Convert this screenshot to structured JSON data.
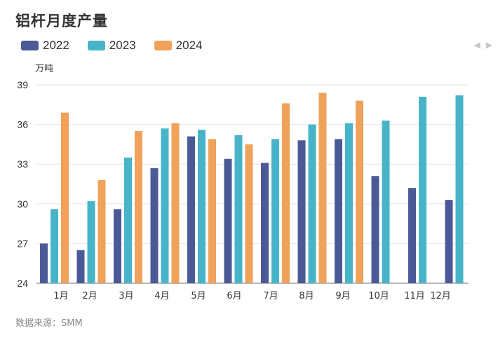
{
  "chart_data": {
    "type": "bar",
    "title": "铝杆月度产量",
    "ylabel": "万吨",
    "ylim": [
      24,
      39
    ],
    "yticks": [
      24,
      27,
      30,
      33,
      36,
      39
    ],
    "categories": [
      "1月",
      "2月",
      "3月",
      "4月",
      "5月",
      "6月",
      "7月",
      "8月",
      "9月",
      "10月",
      "11月",
      "12月"
    ],
    "series": [
      {
        "name": "2022",
        "color": "#4b5a97",
        "values": [
          27.0,
          26.5,
          29.6,
          32.7,
          35.1,
          33.4,
          33.1,
          34.8,
          34.9,
          32.1,
          31.2,
          30.3
        ]
      },
      {
        "name": "2023",
        "color": "#47b4c9",
        "values": [
          29.6,
          30.2,
          33.5,
          35.7,
          35.6,
          35.2,
          34.9,
          36.0,
          36.1,
          36.3,
          38.1,
          38.2
        ]
      },
      {
        "name": "2024",
        "color": "#f0a25b",
        "values": [
          36.9,
          31.8,
          35.5,
          36.1,
          34.9,
          34.5,
          37.6,
          38.4,
          37.8,
          null,
          null,
          null
        ]
      }
    ],
    "grid": true,
    "legend": "top-left"
  },
  "source": "数据来源：SMM",
  "pager": {
    "prev": "◀",
    "next": "▶"
  }
}
